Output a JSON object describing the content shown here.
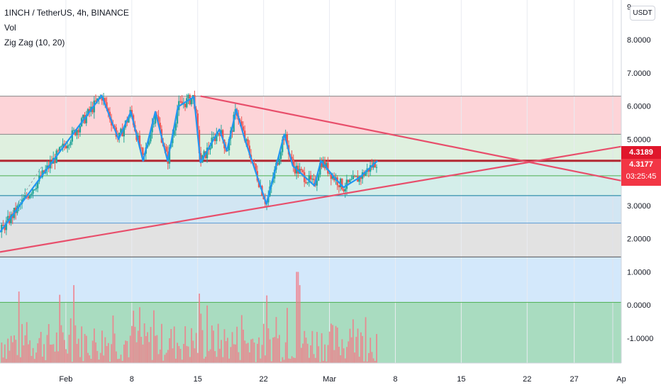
{
  "header": {
    "title": "1INCH / TetherUS, 4h, BINANCE",
    "vol_label": "Vol",
    "indicator_label": "Zig Zag (10, 20)"
  },
  "price_unit": "USDT",
  "last_price": {
    "alert_label": "4.3189",
    "price_label": "4.3177",
    "countdown": "03:25:45",
    "alert_color": "#e0162b",
    "price_color": "#f23645"
  },
  "chart_data": {
    "type": "candlestick",
    "symbol": "1INCH / TetherUS",
    "interval": "4h",
    "exchange": "BINANCE",
    "y_axis": {
      "ticks": [
        "9",
        "8.0000",
        "7.0000",
        "6.0000",
        "5.0000",
        "3.0000",
        "2.0000",
        "1.0000",
        "0.0000",
        "-1.0000"
      ],
      "tick_values": [
        9,
        8,
        7,
        6,
        5,
        3,
        2,
        1,
        0,
        -1
      ],
      "range": [
        -1.75,
        9.2
      ]
    },
    "x_axis": {
      "ticks": [
        "Feb",
        "8",
        "15",
        "22",
        "Mar",
        "8",
        "15",
        "22",
        "27",
        "Ap"
      ],
      "tick_days": [
        32,
        39,
        46,
        53,
        60,
        67,
        74,
        81,
        86,
        91
      ],
      "range_days": [
        25.0,
        91.0
      ]
    },
    "zigzag": {
      "color": "#2196f3",
      "days": [
        25.0,
        35.8,
        37.6,
        38.9,
        40.2,
        41.5,
        42.8,
        43.9,
        45.6,
        46.3,
        48.3,
        49.1,
        50.1,
        51.0,
        53.3,
        55.2,
        56.1,
        58.4,
        59.1,
        60.5,
        61.5,
        63.2,
        65.1
      ],
      "prices": [
        2.2,
        6.32,
        5.0,
        5.83,
        4.35,
        5.83,
        4.35,
        5.98,
        6.28,
        4.3,
        5.3,
        4.65,
        5.9,
        5.0,
        3.05,
        5.15,
        4.2,
        3.6,
        4.35,
        3.85,
        3.55,
        3.85,
        4.35
      ]
    },
    "trendlines": [
      {
        "name": "descending",
        "color": "#e84e6b",
        "days": [
          46.3,
          91.0
        ],
        "prices": [
          6.3,
          3.75
        ]
      },
      {
        "name": "ascending",
        "color": "#e84e6b",
        "days": [
          25.0,
          91.0
        ],
        "prices": [
          1.6,
          4.78
        ]
      }
    ],
    "horizontal_levels": [
      {
        "price": 6.3,
        "color": "#888888"
      },
      {
        "price": 5.15,
        "color": "#888888"
      },
      {
        "price": 4.35,
        "color": "#b22833"
      },
      {
        "price": 3.9,
        "color": "#4caf50"
      },
      {
        "price": 3.3,
        "color": "#0f7a9e"
      },
      {
        "price": 2.47,
        "color": "#5b9bd5"
      },
      {
        "price": 1.45,
        "color": "#555555"
      },
      {
        "price": 0.08,
        "color": "#4caf50"
      }
    ],
    "zones": [
      {
        "from": 5.15,
        "to": 6.3,
        "color": "#fdd4d8"
      },
      {
        "from": 4.35,
        "to": 5.15,
        "color": "#dff0df"
      },
      {
        "from": 3.3,
        "to": 4.35,
        "color": "#d4eeea"
      },
      {
        "from": 2.47,
        "to": 3.3,
        "color": "#d2e6f3"
      },
      {
        "from": 1.45,
        "to": 2.47,
        "color": "#e2e2e2"
      },
      {
        "from": 0.08,
        "to": 1.45,
        "color": "#d3e8fb"
      },
      {
        "from": -1.75,
        "to": 0.08,
        "color": "#a9dcc0"
      }
    ],
    "candle_colors": {
      "up": "#26a69a",
      "down": "#ef5350"
    },
    "volume_color": "#f17d88"
  }
}
